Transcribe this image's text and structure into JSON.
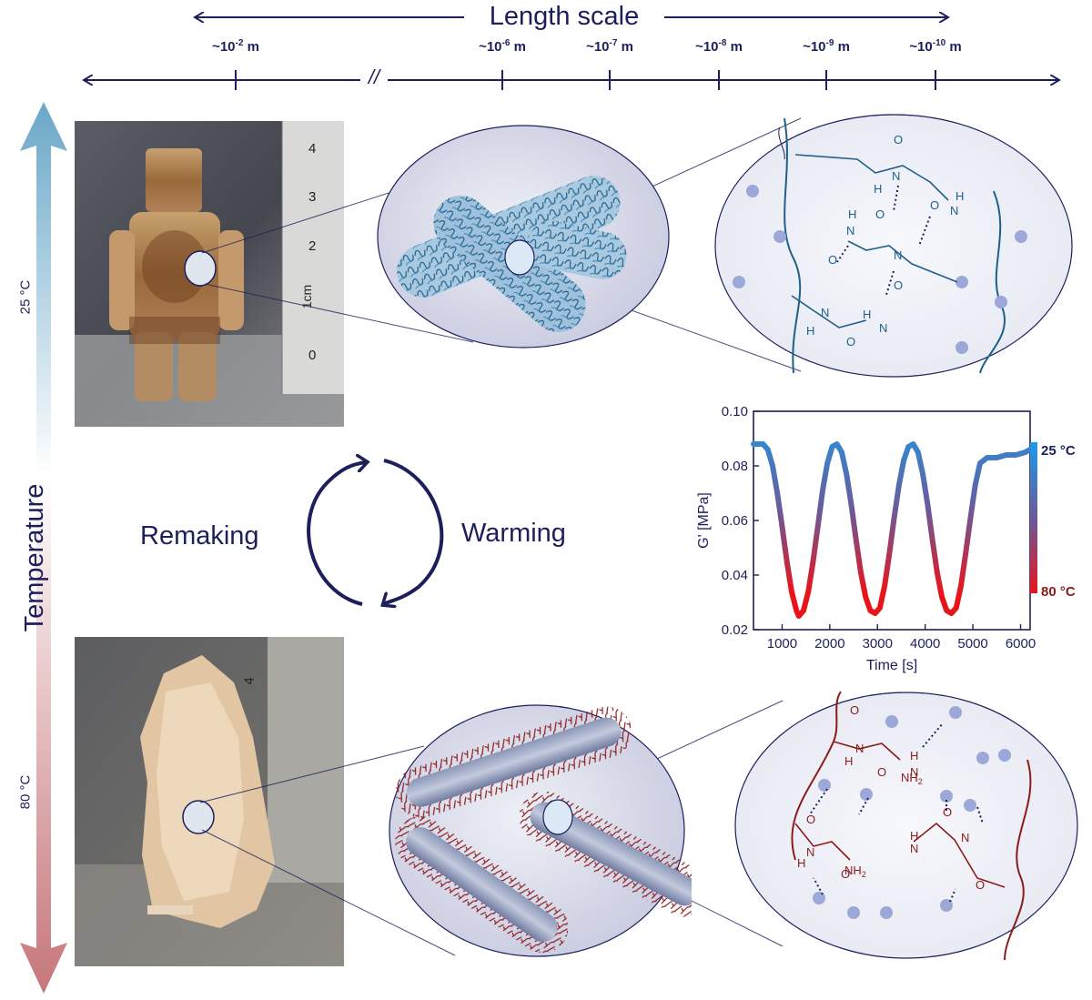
{
  "length_scale": {
    "title": "Length scale",
    "ticks": [
      "~10-2 m",
      "~10-6 m",
      "~10-7 m",
      "~10-8 m",
      "~10-9 m",
      "~10-10 m"
    ],
    "tick_bases": [
      "~10",
      "~10",
      "~10",
      "~10",
      "~10",
      "~10"
    ],
    "tick_exponents": [
      "-2",
      "-6",
      "-7",
      "-8",
      "-9",
      "-10"
    ],
    "tick_unit": "m",
    "break_mark": "//"
  },
  "temperature_axis": {
    "title": "Temperature",
    "top_label": "25 °C",
    "bottom_label": "80 °C",
    "top_color": "#6aa7c8",
    "bottom_color": "#c6767a"
  },
  "cycle": {
    "left_label": "Remaking",
    "right_label": "Warming"
  },
  "ruler_top": {
    "numbers": [
      "4",
      "3",
      "2",
      "1cm",
      "0"
    ]
  },
  "ruler_bottom": {
    "numbers": [
      "4"
    ]
  },
  "molecule": {
    "atoms": [
      "N",
      "H",
      "O"
    ],
    "nh2": "NH",
    "sub2": "2"
  },
  "colors": {
    "navy": "#1c1f5c",
    "cold_blue": "#1f5f8a",
    "hot_red": "#8b1a1a"
  },
  "chart_data": {
    "type": "line",
    "xlabel": "Time [s]",
    "ylabel": "G' [MPa]",
    "xlim": [
      400,
      6200
    ],
    "ylim": [
      0.02,
      0.1
    ],
    "xticks": [
      1000,
      2000,
      3000,
      4000,
      5000,
      6000
    ],
    "yticks": [
      "0.02",
      "0.04",
      "0.06",
      "0.08",
      "0.10"
    ],
    "colorbar": {
      "top": "25 °C",
      "bottom": "80 °C"
    },
    "series": [
      {
        "x": [
          400,
          600,
          700,
          800,
          900,
          1000,
          1100,
          1200,
          1300,
          1350,
          1450,
          1550,
          1650,
          1750,
          1850,
          1950,
          2050,
          2150,
          2250,
          2350,
          2450,
          2550,
          2650,
          2750,
          2850,
          2950,
          3050,
          3150,
          3250,
          3350,
          3450,
          3550,
          3650,
          3750,
          3850,
          3950,
          4050,
          4150,
          4250,
          4350,
          4450,
          4550,
          4650,
          4750,
          4850,
          4950,
          5050,
          5150,
          5300,
          5500,
          5700,
          5900,
          6100,
          6200
        ],
        "y": [
          0.088,
          0.088,
          0.086,
          0.08,
          0.07,
          0.058,
          0.045,
          0.034,
          0.027,
          0.025,
          0.027,
          0.034,
          0.045,
          0.058,
          0.071,
          0.081,
          0.087,
          0.088,
          0.085,
          0.077,
          0.066,
          0.053,
          0.041,
          0.032,
          0.027,
          0.026,
          0.028,
          0.036,
          0.048,
          0.061,
          0.073,
          0.082,
          0.087,
          0.088,
          0.085,
          0.077,
          0.066,
          0.053,
          0.041,
          0.032,
          0.027,
          0.026,
          0.028,
          0.036,
          0.048,
          0.061,
          0.073,
          0.081,
          0.083,
          0.083,
          0.084,
          0.084,
          0.085,
          0.086
        ],
        "color_scale": "temperature (blue = 25 °C, red = 80 °C)"
      }
    ]
  }
}
